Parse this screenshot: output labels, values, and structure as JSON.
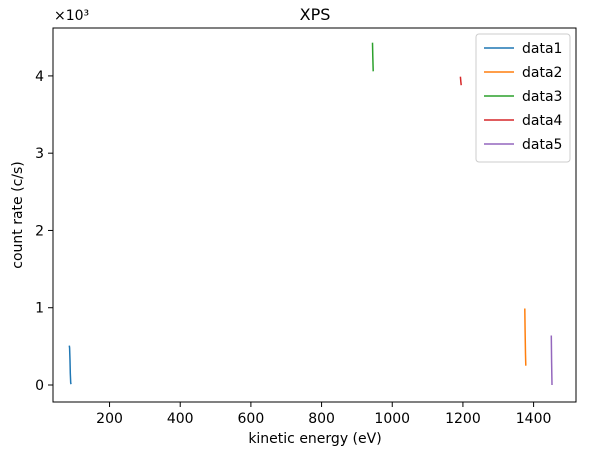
{
  "chart_data": {
    "type": "line",
    "title": "XPS",
    "xlabel": "kinetic energy (eV)",
    "ylabel": "count rate (c/s)",
    "y_offset_label": "×10³",
    "xlim": [
      40,
      1520
    ],
    "ylim": [
      -220,
      4620
    ],
    "xticks": [
      200,
      400,
      600,
      800,
      1000,
      1200,
      1400
    ],
    "xtick_labels": [
      "200",
      "400",
      "600",
      "800",
      "1000",
      "1200",
      "1400"
    ],
    "yticks": [
      0,
      1000,
      2000,
      3000,
      4000
    ],
    "ytick_labels": [
      "0",
      "1",
      "2",
      "3",
      "4"
    ],
    "legend_position": "top-right",
    "grid": false,
    "series": [
      {
        "name": "data1",
        "color": "#1f77b4",
        "x": [
          86,
          87,
          88,
          89,
          90,
          91
        ],
        "y": [
          510,
          480,
          320,
          150,
          30,
          10
        ]
      },
      {
        "name": "data2",
        "color": "#ff7f0e",
        "x": [
          1375,
          1376,
          1377,
          1378
        ],
        "y": [
          990,
          700,
          400,
          250
        ]
      },
      {
        "name": "data3",
        "color": "#2ca02c",
        "x": [
          944,
          945,
          946
        ],
        "y": [
          4430,
          4250,
          4060
        ]
      },
      {
        "name": "data4",
        "color": "#d62728",
        "x": [
          1193,
          1194,
          1195
        ],
        "y": [
          3990,
          3930,
          3880
        ]
      },
      {
        "name": "data5",
        "color": "#9467bd",
        "x": [
          1450,
          1451,
          1452
        ],
        "y": [
          640,
          300,
          0
        ]
      }
    ]
  }
}
